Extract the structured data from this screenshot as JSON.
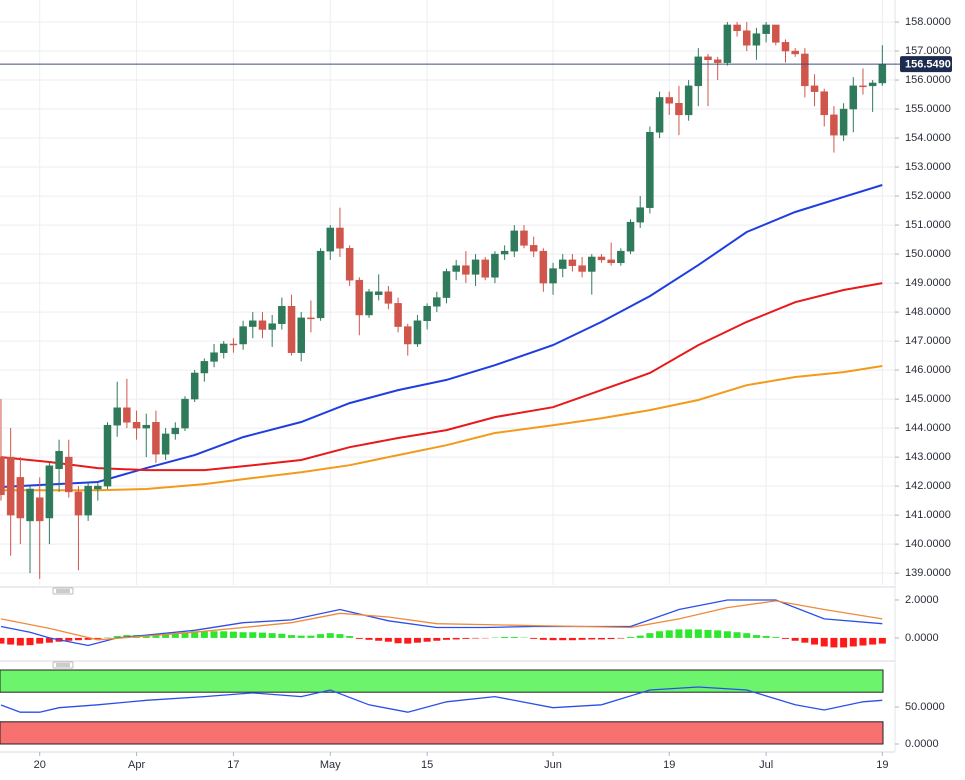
{
  "chart_data": [
    {
      "type": "candlestick",
      "xlim": [
        -0.1,
        92.1
      ],
      "xticks": [
        {
          "value": 4,
          "label": "20"
        },
        {
          "value": 14,
          "label": "Apr"
        },
        {
          "value": 24,
          "label": "17"
        },
        {
          "value": 34,
          "label": "May"
        },
        {
          "value": 44,
          "label": "15"
        },
        {
          "value": 57,
          "label": "Jun"
        },
        {
          "value": 69,
          "label": "19"
        },
        {
          "value": 79,
          "label": "Jul"
        },
        {
          "value": 91,
          "label": "19"
        }
      ],
      "ylim": [
        138.59,
        158.76
      ],
      "yticks": [
        {
          "value": 158,
          "label": "158.0000"
        },
        {
          "value": 157,
          "label": "157.0000"
        },
        {
          "value": 156,
          "label": "156.0000"
        },
        {
          "value": 155,
          "label": "155.0000"
        },
        {
          "value": 154,
          "label": "154.0000"
        },
        {
          "value": 153,
          "label": "153.0000"
        },
        {
          "value": 152,
          "label": "152.0000"
        },
        {
          "value": 151,
          "label": "151.0000"
        },
        {
          "value": 150,
          "label": "150.0000"
        },
        {
          "value": 149,
          "label": "149.0000"
        },
        {
          "value": 148,
          "label": "148.0000"
        },
        {
          "value": 147,
          "label": "147.0000"
        },
        {
          "value": 146,
          "label": "146.0000"
        },
        {
          "value": 145,
          "label": "145.0000"
        },
        {
          "value": 144,
          "label": "144.0000"
        },
        {
          "value": 143,
          "label": "143.0000"
        },
        {
          "value": 142,
          "label": "142.0000"
        },
        {
          "value": 141,
          "label": "141.0000"
        },
        {
          "value": 140,
          "label": "140.0000"
        },
        {
          "value": 139,
          "label": "139.0000"
        }
      ],
      "grid": true,
      "up_color": "#2e7a5a",
      "down_color": "#d0554a",
      "open": [
        143.0,
        143.0,
        142.3,
        140.8,
        141.6,
        140.9,
        142.6,
        143.0,
        141.8,
        141.0,
        141.9,
        142.0,
        144.1,
        144.7,
        144.2,
        144.0,
        144.2,
        143.1,
        143.8,
        144.0,
        145.0,
        145.9,
        146.3,
        146.6,
        146.9,
        146.9,
        147.5,
        147.7,
        147.4,
        147.6,
        148.2,
        146.6,
        147.8,
        147.8,
        150.1,
        150.9,
        150.2,
        149.1,
        147.9,
        148.6,
        148.7,
        148.3,
        147.5,
        146.9,
        147.7,
        148.2,
        148.5,
        149.4,
        149.6,
        149.3,
        149.8,
        149.2,
        150.0,
        150.1,
        150.8,
        150.3,
        150.1,
        149.0,
        149.5,
        149.8,
        149.6,
        149.4,
        149.9,
        149.8,
        149.7,
        150.1,
        151.1,
        151.6,
        154.2,
        155.4,
        155.2,
        154.8,
        155.8,
        156.8,
        156.7,
        156.6,
        157.9,
        157.7,
        157.2,
        157.6,
        157.9,
        157.3,
        157.0,
        156.9,
        155.8,
        155.6,
        154.8,
        154.1,
        155.0,
        155.8,
        155.8,
        155.9
      ],
      "high": [
        145.0,
        144.0,
        143.0,
        142.0,
        142.3,
        142.8,
        143.6,
        143.6,
        142.0,
        142.1,
        142.1,
        144.2,
        145.6,
        145.7,
        144.6,
        144.5,
        144.6,
        144.0,
        144.2,
        145.1,
        146.0,
        146.4,
        146.9,
        147.0,
        147.1,
        147.7,
        148.0,
        148.0,
        147.9,
        148.5,
        148.6,
        148.0,
        148.4,
        150.2,
        151.0,
        151.6,
        150.3,
        149.2,
        148.8,
        149.3,
        148.9,
        148.5,
        147.6,
        147.9,
        148.3,
        148.7,
        149.5,
        149.8,
        150.1,
        150.0,
        149.9,
        150.1,
        150.3,
        151.0,
        151.0,
        150.6,
        150.2,
        149.7,
        150.0,
        150.0,
        149.9,
        150.0,
        150.0,
        150.4,
        150.2,
        151.2,
        152.0,
        154.4,
        155.6,
        155.6,
        155.8,
        156.0,
        157.1,
        156.9,
        156.8,
        158.0,
        158.0,
        158.0,
        157.8,
        158.0,
        157.9,
        157.4,
        157.1,
        157.1,
        156.2,
        155.7,
        155.1,
        155.2,
        156.1,
        156.4,
        156.0,
        157.2
      ],
      "low": [
        141.5,
        139.6,
        140.0,
        139.0,
        138.8,
        140.0,
        141.8,
        141.6,
        139.1,
        140.8,
        141.5,
        141.9,
        143.7,
        144.0,
        143.6,
        143.0,
        142.8,
        142.9,
        143.6,
        143.9,
        144.9,
        145.6,
        146.1,
        146.4,
        146.6,
        146.7,
        147.1,
        147.1,
        146.8,
        147.4,
        146.5,
        146.3,
        147.3,
        147.7,
        149.8,
        149.9,
        148.9,
        147.2,
        147.8,
        148.4,
        148.1,
        147.3,
        146.5,
        146.8,
        147.4,
        148.0,
        148.3,
        149.1,
        149.0,
        148.9,
        149.1,
        149.0,
        149.8,
        149.9,
        150.2,
        149.9,
        148.7,
        148.6,
        149.2,
        149.4,
        149.2,
        148.6,
        149.7,
        149.6,
        149.6,
        150.0,
        150.9,
        151.4,
        154.0,
        154.8,
        154.1,
        154.6,
        155.1,
        155.1,
        156.0,
        156.5,
        157.5,
        157.0,
        156.7,
        157.3,
        157.2,
        156.6,
        156.8,
        155.4,
        155.1,
        154.4,
        153.5,
        153.9,
        154.2,
        155.5,
        154.9,
        155.8
      ],
      "close": [
        141.7,
        141.0,
        140.9,
        141.9,
        140.8,
        142.7,
        143.2,
        141.8,
        141.0,
        142.0,
        142.0,
        144.1,
        144.7,
        144.2,
        144.0,
        144.1,
        143.1,
        143.8,
        144.0,
        145.0,
        145.9,
        146.3,
        146.6,
        146.9,
        146.9,
        147.5,
        147.7,
        147.4,
        147.6,
        148.2,
        146.6,
        147.8,
        147.8,
        150.1,
        150.9,
        150.2,
        149.1,
        147.9,
        148.7,
        148.7,
        148.3,
        147.5,
        146.9,
        147.7,
        148.2,
        148.5,
        149.4,
        149.6,
        149.3,
        149.8,
        149.2,
        150.0,
        150.1,
        150.8,
        150.3,
        150.1,
        149.0,
        149.5,
        149.8,
        149.6,
        149.4,
        149.9,
        149.8,
        149.7,
        150.1,
        151.1,
        151.6,
        154.2,
        155.4,
        155.2,
        154.8,
        155.8,
        156.8,
        156.7,
        156.6,
        157.9,
        157.7,
        157.2,
        157.6,
        157.9,
        157.3,
        157.0,
        156.9,
        155.8,
        155.6,
        154.8,
        154.1,
        155.0,
        155.8,
        155.8,
        155.9,
        156.549
      ],
      "last_price": {
        "value": 156.549,
        "label": "156.5490"
      },
      "series": [
        {
          "color": "#1f3ee0",
          "x": [
            0,
            10,
            15,
            20,
            25,
            31,
            36,
            41,
            46,
            51,
            57,
            62,
            67,
            72,
            77,
            82,
            87,
            91
          ],
          "values": [
            141.97,
            142.14,
            142.62,
            143.07,
            143.69,
            144.21,
            144.86,
            145.31,
            145.66,
            146.17,
            146.86,
            147.66,
            148.55,
            149.62,
            150.76,
            151.45,
            151.97,
            152.38
          ]
        },
        {
          "color": "#e8191b",
          "x": [
            0,
            5,
            10,
            15,
            21,
            26,
            31,
            36,
            41,
            46,
            51,
            57,
            62,
            67,
            72,
            77,
            82,
            87,
            91
          ],
          "values": [
            143.0,
            142.83,
            142.62,
            142.55,
            142.55,
            142.72,
            142.9,
            143.34,
            143.66,
            143.93,
            144.38,
            144.72,
            145.31,
            145.9,
            146.86,
            147.66,
            148.34,
            148.76,
            149.0
          ]
        },
        {
          "color": "#f39a1a",
          "x": [
            0,
            10,
            15,
            21,
            26,
            31,
            36,
            41,
            46,
            51,
            57,
            62,
            67,
            72,
            77,
            82,
            87,
            91
          ],
          "values": [
            141.86,
            141.86,
            141.9,
            142.07,
            142.28,
            142.48,
            142.72,
            143.07,
            143.41,
            143.83,
            144.1,
            144.34,
            144.62,
            144.97,
            145.48,
            145.76,
            145.93,
            146.14
          ]
        }
      ]
    },
    {
      "type": "macd",
      "ylim": [
        -0.9,
        2.42
      ],
      "yticks": [
        {
          "value": 2,
          "label": "2.0000"
        },
        {
          "value": 0,
          "label": "0.0000"
        }
      ],
      "histogram": {
        "up_color": "#2ee62e",
        "down_color": "#ff1a1a",
        "values": [
          -0.3,
          -0.35,
          -0.4,
          -0.38,
          -0.3,
          -0.25,
          -0.2,
          -0.15,
          -0.12,
          -0.1,
          -0.05,
          0.02,
          0.1,
          0.15,
          0.15,
          0.15,
          0.2,
          0.2,
          0.25,
          0.3,
          0.35,
          0.35,
          0.35,
          0.35,
          0.33,
          0.3,
          0.3,
          0.28,
          0.25,
          0.22,
          0.15,
          0.12,
          0.12,
          0.2,
          0.25,
          0.2,
          0.1,
          -0.05,
          -0.1,
          -0.15,
          -0.2,
          -0.28,
          -0.3,
          -0.25,
          -0.2,
          -0.15,
          -0.1,
          -0.08,
          -0.05,
          -0.03,
          -0.02,
          0.02,
          0.05,
          0.05,
          0.02,
          -0.05,
          -0.1,
          -0.12,
          -0.12,
          -0.12,
          -0.1,
          -0.08,
          -0.08,
          -0.06,
          -0.03,
          0.05,
          0.12,
          0.25,
          0.35,
          0.4,
          0.45,
          0.45,
          0.45,
          0.42,
          0.4,
          0.35,
          0.3,
          0.25,
          0.15,
          0.1,
          0.05,
          -0.05,
          -0.15,
          -0.25,
          -0.35,
          -0.45,
          -0.5,
          -0.5,
          -0.45,
          -0.4,
          -0.35,
          -0.3
        ]
      },
      "series": [
        {
          "color": "#2a4fe8",
          "x": [
            0,
            3,
            5,
            9,
            12,
            15,
            20,
            25,
            30,
            35,
            40,
            45,
            50,
            55,
            60,
            65,
            70,
            75,
            80,
            85,
            91
          ],
          "values": [
            0.6,
            0.3,
            0.0,
            -0.4,
            0.0,
            0.15,
            0.4,
            0.8,
            0.95,
            1.5,
            0.9,
            0.55,
            0.55,
            0.6,
            0.6,
            0.6,
            1.5,
            2.0,
            2.0,
            1.0,
            0.75
          ]
        },
        {
          "color": "#f08a3a",
          "x": [
            0,
            5,
            10,
            15,
            20,
            25,
            30,
            35,
            40,
            45,
            50,
            55,
            60,
            65,
            70,
            75,
            80,
            85,
            91
          ],
          "values": [
            1.0,
            0.5,
            -0.1,
            0.1,
            0.3,
            0.55,
            0.8,
            1.3,
            1.1,
            0.75,
            0.7,
            0.65,
            0.6,
            0.55,
            1.0,
            1.6,
            1.95,
            1.5,
            1.0
          ]
        }
      ]
    },
    {
      "type": "rsi",
      "ylim": [
        -8.1,
        100
      ],
      "yticks": [
        {
          "value": 50,
          "label": "50.0000"
        },
        {
          "value": 0,
          "label": "0.0000"
        }
      ],
      "bands": [
        {
          "range": [
            70,
            100
          ],
          "color": "#6cf56c"
        },
        {
          "range": [
            0,
            30
          ],
          "color": "#f87171"
        }
      ],
      "series": [
        {
          "color": "#2a4fe8",
          "x": [
            0,
            2,
            4,
            6,
            10,
            15,
            21,
            26,
            31,
            34,
            38,
            42,
            46,
            51,
            57,
            62,
            67,
            72,
            77,
            82,
            85,
            89,
            91
          ],
          "values": [
            52.7,
            43,
            43,
            49,
            53,
            59,
            64,
            69,
            64,
            73,
            53,
            43,
            57,
            64,
            49,
            53,
            73,
            77,
            73,
            53,
            46,
            57,
            59
          ]
        }
      ]
    }
  ]
}
